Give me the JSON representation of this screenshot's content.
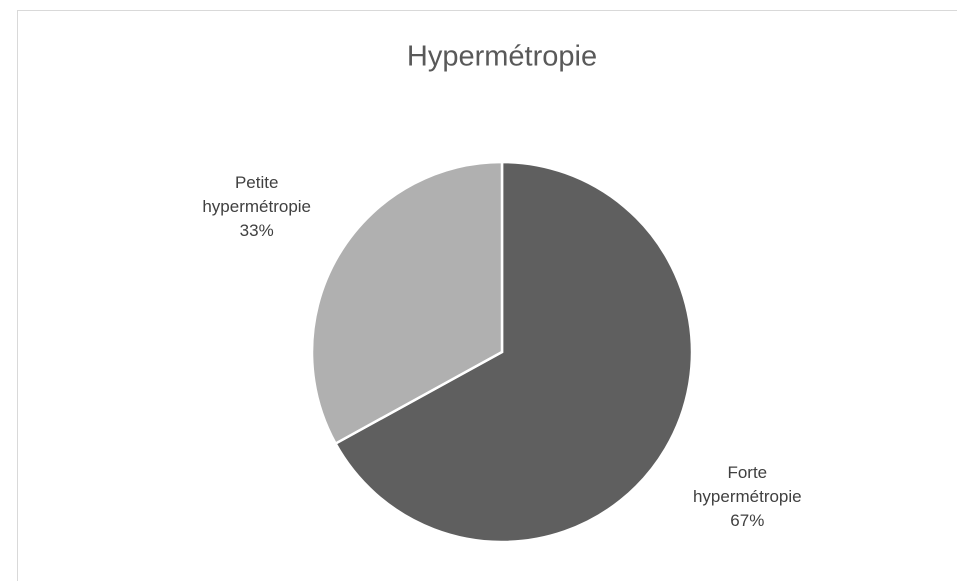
{
  "chart_data": {
    "type": "pie",
    "title": "Hypermétropie",
    "categories": [
      "Forte hypermétropie",
      "Petite hypermétropie"
    ],
    "values": [
      67,
      33
    ],
    "value_labels": [
      "67%",
      "33%"
    ],
    "colors": [
      "#5f5f5f",
      "#b0b0b0"
    ]
  }
}
